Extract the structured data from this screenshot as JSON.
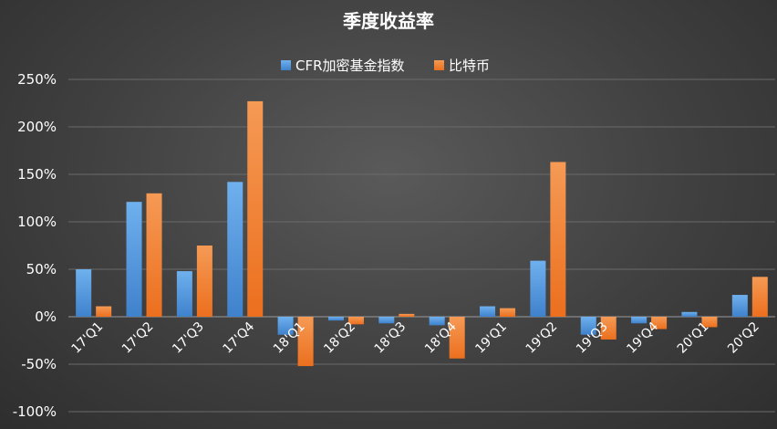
{
  "chart_data": {
    "type": "bar",
    "title": "季度收益率",
    "xlabel": "",
    "ylabel": "",
    "ylim": [
      -100,
      250
    ],
    "yticks": [
      250,
      200,
      150,
      100,
      50,
      0,
      -50,
      -100
    ],
    "ytick_labels": [
      "250%",
      "200%",
      "150%",
      "100%",
      "50%",
      "0%",
      "-50%",
      "-100%"
    ],
    "categories": [
      "17'Q1",
      "17'Q2",
      "17'Q3",
      "17'Q4",
      "18'Q1",
      "18'Q2",
      "18'Q3",
      "18'Q4",
      "19'Q1",
      "19'Q2",
      "19'Q3",
      "19'Q4",
      "20'Q1",
      "20'Q2"
    ],
    "legend_position": "top-center",
    "grid": true,
    "series": [
      {
        "name": "CFR加密基金指数",
        "color": "#4a90d9",
        "values": [
          50,
          121,
          48,
          142,
          -19,
          -4,
          -7,
          -9,
          11,
          59,
          -19,
          -7,
          5,
          23
        ]
      },
      {
        "name": "比特币",
        "color": "#f07c2a",
        "values": [
          11,
          130,
          75,
          227,
          -52,
          -8,
          3,
          -44,
          9,
          163,
          -24,
          -13,
          -11,
          42
        ]
      }
    ]
  }
}
